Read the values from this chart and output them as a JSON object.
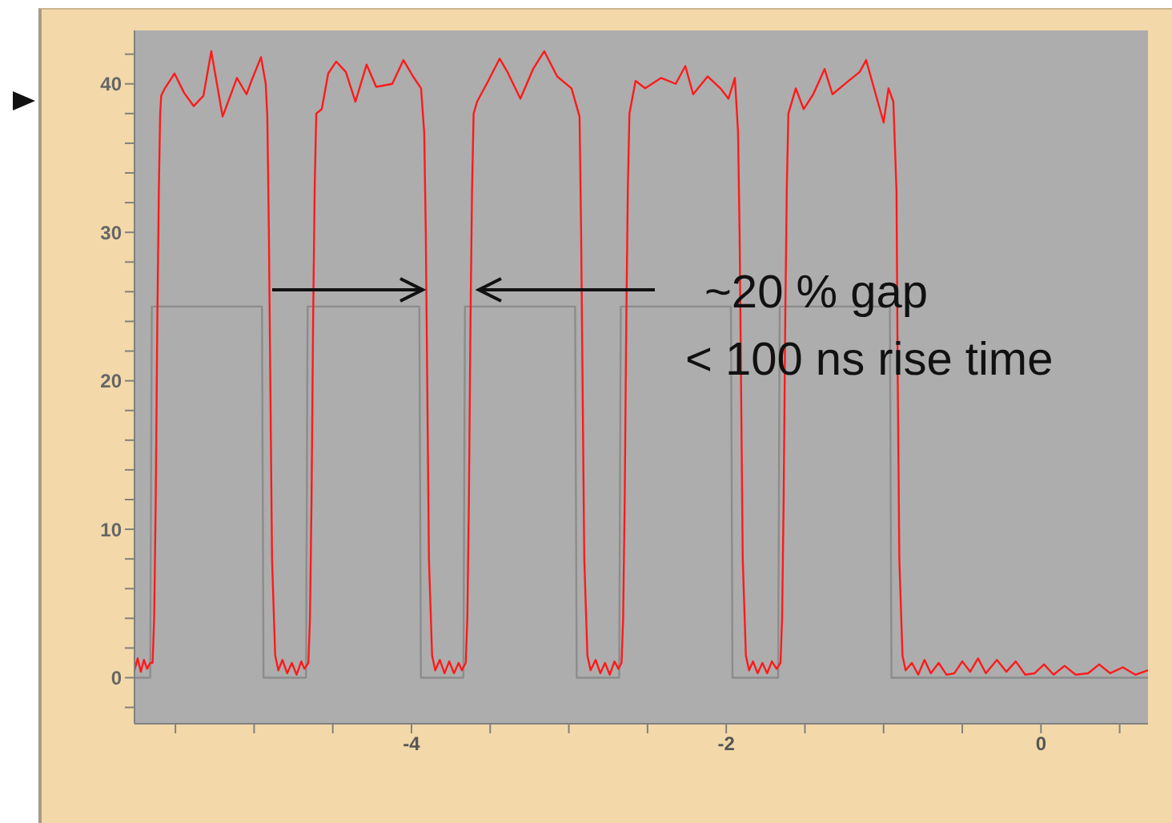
{
  "chart_data": {
    "type": "line",
    "xlim": [
      -5.76,
      0.68
    ],
    "ylim": [
      -3.1,
      43.6
    ],
    "xticks": [
      {
        "value": -5.5,
        "label": null
      },
      {
        "value": -5,
        "label": null
      },
      {
        "value": -4.5,
        "label": null
      },
      -4,
      {
        "value": -3.5,
        "label": null
      },
      {
        "value": -3,
        "label": null
      },
      {
        "value": -2.5,
        "label": null
      },
      -2,
      {
        "value": -1.5,
        "label": null
      },
      {
        "value": -1,
        "label": null
      },
      {
        "value": -0.5,
        "label": null
      },
      0,
      {
        "value": 0.5,
        "label": null
      }
    ],
    "yticks": [
      {
        "value": -2,
        "label": null
      },
      0,
      {
        "value": 2,
        "label": null
      },
      {
        "value": 4,
        "label": null
      },
      {
        "value": 6,
        "label": null
      },
      {
        "value": 8,
        "label": null
      },
      10,
      {
        "value": 12,
        "label": null
      },
      {
        "value": 14,
        "label": null
      },
      {
        "value": 16,
        "label": null
      },
      {
        "value": 18,
        "label": null
      },
      20,
      {
        "value": 22,
        "label": null
      },
      {
        "value": 24,
        "label": null
      },
      {
        "value": 26,
        "label": null
      },
      {
        "value": 28,
        "label": null
      },
      30,
      {
        "value": 32,
        "label": null
      },
      {
        "value": 34,
        "label": null
      },
      {
        "value": 36,
        "label": null
      },
      {
        "value": 38,
        "label": null
      },
      40,
      {
        "value": 42,
        "label": null
      }
    ],
    "annotations": [
      "~20 % gap",
      "< 100 ns rise time"
    ],
    "series": [
      {
        "color": "#8c8c8c",
        "x": [
          -5.76,
          -5.66,
          -5.65,
          -4.95,
          -4.94,
          -4.67,
          -4.66,
          -3.95,
          -3.94,
          -3.67,
          -3.66,
          -2.96,
          -2.95,
          -2.68,
          -2.67,
          -1.97,
          -1.96,
          -1.67,
          -1.66,
          -0.96,
          -0.95,
          0.68
        ],
        "values": [
          0,
          0,
          25,
          25,
          0,
          0,
          25,
          25,
          0,
          0,
          25,
          25,
          0,
          0,
          25,
          25,
          0,
          0,
          25,
          25,
          0,
          0
        ]
      },
      {
        "color": "#ff1a1a",
        "x": [
          -5.76,
          -5.74,
          -5.72,
          -5.7,
          -5.68,
          -5.66,
          -5.645,
          -5.635,
          -5.625,
          -5.615,
          -5.605,
          -5.597,
          -5.59,
          -5.567,
          -5.506,
          -5.445,
          -5.384,
          -5.322,
          -5.272,
          -5.2,
          -5.109,
          -5.048,
          -5.017,
          -4.956,
          -4.926,
          -4.916,
          -4.906,
          -4.886,
          -4.866,
          -4.846,
          -4.82,
          -4.79,
          -4.76,
          -4.73,
          -4.7,
          -4.68,
          -4.655,
          -4.645,
          -4.635,
          -4.625,
          -4.615,
          -4.605,
          -4.57,
          -4.529,
          -4.478,
          -4.417,
          -4.356,
          -4.285,
          -4.224,
          -4.122,
          -4.051,
          -3.99,
          -3.939,
          -3.919,
          -3.909,
          -3.889,
          -3.869,
          -3.849,
          -3.82,
          -3.79,
          -3.76,
          -3.73,
          -3.7,
          -3.68,
          -3.655,
          -3.645,
          -3.635,
          -3.625,
          -3.615,
          -3.605,
          -3.583,
          -3.512,
          -3.44,
          -3.39,
          -3.308,
          -3.227,
          -3.156,
          -3.074,
          -2.983,
          -2.932,
          -2.922,
          -2.902,
          -2.882,
          -2.862,
          -2.83,
          -2.8,
          -2.77,
          -2.74,
          -2.71,
          -2.685,
          -2.665,
          -2.655,
          -2.645,
          -2.635,
          -2.625,
          -2.615,
          -2.576,
          -2.515,
          -2.413,
          -2.321,
          -2.26,
          -2.21,
          -2.118,
          -2.037,
          -1.986,
          -1.945,
          -1.925,
          -1.915,
          -1.895,
          -1.875,
          -1.855,
          -1.83,
          -1.8,
          -1.77,
          -1.74,
          -1.71,
          -1.68,
          -1.655,
          -1.645,
          -1.635,
          -1.625,
          -1.615,
          -1.605,
          -1.558,
          -1.508,
          -1.447,
          -1.375,
          -1.325,
          -1.223,
          -1.152,
          -1.111,
          -1.05,
          -1.0,
          -0.969,
          -0.938,
          -0.918,
          -0.91,
          -0.9,
          -0.88,
          -0.86,
          -0.82,
          -0.78,
          -0.74,
          -0.7,
          -0.65,
          -0.6,
          -0.55,
          -0.5,
          -0.45,
          -0.4,
          -0.35,
          -0.28,
          -0.22,
          -0.16,
          -0.1,
          -0.04,
          0.02,
          0.08,
          0.15,
          0.22,
          0.3,
          0.37,
          0.44,
          0.52,
          0.6,
          0.68
        ],
        "values": [
          0.5,
          1.3,
          0.4,
          1.2,
          0.6,
          1.0,
          1,
          4,
          12,
          24,
          33,
          38,
          39.2,
          39.7,
          40.7,
          39.4,
          38.5,
          39.2,
          42.2,
          37.8,
          40.4,
          39.3,
          40.2,
          41.8,
          40.0,
          37.8,
          30,
          8,
          1.5,
          0.5,
          1.2,
          0.3,
          1.0,
          0.2,
          1.1,
          0.6,
          1,
          4,
          12,
          24,
          33,
          38,
          38.3,
          40.7,
          41.5,
          40.8,
          38.8,
          41.3,
          39.8,
          40.0,
          41.6,
          40.5,
          39.7,
          36.7,
          30,
          8,
          1.5,
          0.5,
          1.2,
          0.3,
          1.1,
          0.3,
          1.0,
          0.5,
          1,
          4,
          12,
          24,
          33,
          38,
          38.8,
          40.2,
          41.7,
          40.8,
          39.0,
          41.0,
          42.2,
          40.5,
          39.7,
          37.8,
          30,
          8,
          1.5,
          0.5,
          1.2,
          0.3,
          1.0,
          0.2,
          1.1,
          0.6,
          1,
          4,
          12,
          24,
          33,
          38,
          40.2,
          39.7,
          40.4,
          40.0,
          41.2,
          39.3,
          40.5,
          39.7,
          39.0,
          40.4,
          36.8,
          30,
          8,
          1.5,
          0.5,
          1.1,
          0.3,
          1.0,
          0.3,
          1.1,
          0.6,
          1,
          4,
          12,
          24,
          33,
          38,
          39.7,
          38.3,
          39.3,
          41.0,
          39.3,
          40.2,
          40.8,
          41.6,
          39.3,
          37.4,
          39.7,
          38.8,
          32.8,
          20,
          8,
          1.5,
          0.5,
          1.0,
          0.2,
          1.2,
          0.3,
          1.0,
          0.2,
          0.3,
          1.1,
          0.4,
          1.3,
          0.3,
          1.2,
          0.4,
          1.1,
          0.2,
          0.3,
          0.9,
          0.2,
          0.8,
          0.2,
          0.3,
          0.9,
          0.3,
          0.7,
          0.2,
          0.5
        ]
      }
    ]
  }
}
